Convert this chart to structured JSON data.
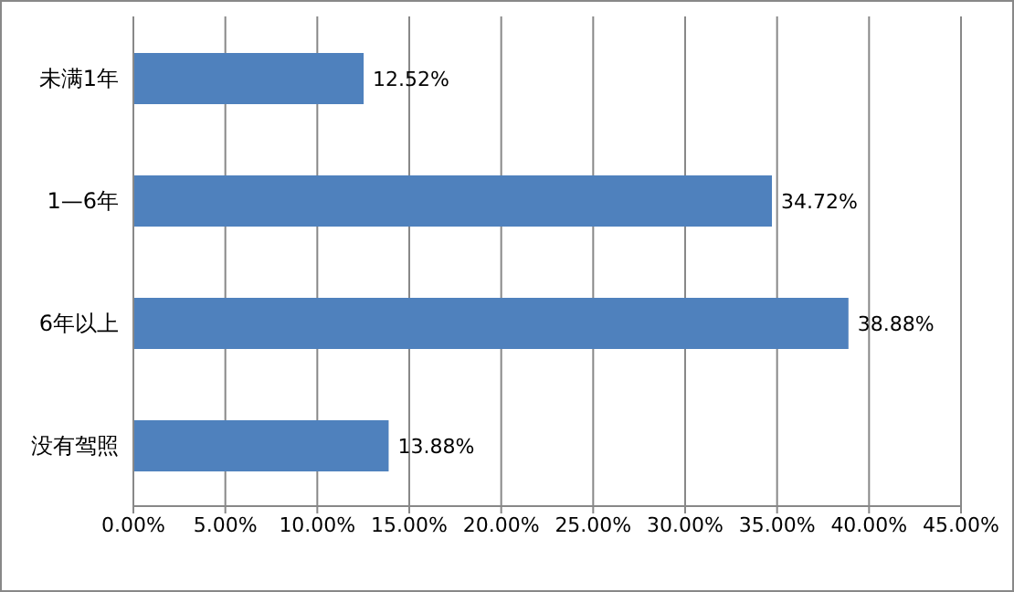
{
  "chart_data": {
    "type": "bar",
    "orientation": "horizontal",
    "categories": [
      "未满1年",
      "1—6年",
      "6年以上",
      "没有驾照"
    ],
    "values": [
      12.52,
      34.72,
      38.88,
      13.88
    ],
    "value_labels": [
      "12.52%",
      "34.72%",
      "38.88%",
      "13.88%"
    ],
    "color": "#4f81bd",
    "xlim": [
      0,
      45
    ],
    "xticks": [
      {
        "value": 0,
        "label": "0.00%"
      },
      {
        "value": 5,
        "label": "5.00%"
      },
      {
        "value": 10,
        "label": "10.00%"
      },
      {
        "value": 15,
        "label": "15.00%"
      },
      {
        "value": 20,
        "label": "20.00%"
      },
      {
        "value": 25,
        "label": "25.00%"
      },
      {
        "value": 30,
        "label": "30.00%"
      },
      {
        "value": 35,
        "label": "35.00%"
      },
      {
        "value": 40,
        "label": "40.00%"
      },
      {
        "value": 45,
        "label": "45.00%"
      }
    ],
    "grid": "x"
  }
}
